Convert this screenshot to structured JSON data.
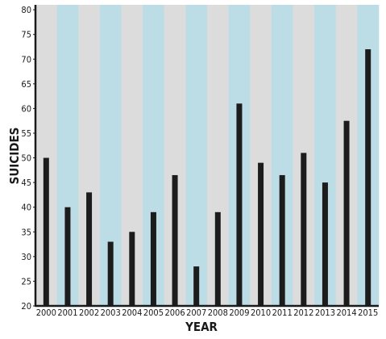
{
  "chart_data": {
    "type": "bar",
    "title": "",
    "xlabel": "YEAR",
    "ylabel": "SUICIDES",
    "ylim": [
      20,
      81
    ],
    "yticks": [
      20,
      25,
      30,
      35,
      40,
      45,
      50,
      55,
      60,
      65,
      70,
      75,
      80
    ],
    "categories": [
      "2000",
      "2001",
      "2002",
      "2003",
      "2004",
      "2005",
      "2006",
      "2007",
      "2008",
      "2009",
      "2010",
      "2011",
      "2012",
      "2013",
      "2014",
      "2015"
    ],
    "values": [
      50,
      40,
      43,
      33,
      35,
      39,
      46.5,
      28,
      39,
      61,
      49,
      46.5,
      51,
      45,
      57.5,
      72
    ],
    "bar_color": "#1c1c1c",
    "band_colors": [
      "#dcdcdc",
      "#bcdce6"
    ],
    "axis_color": "#1a1a1a"
  }
}
